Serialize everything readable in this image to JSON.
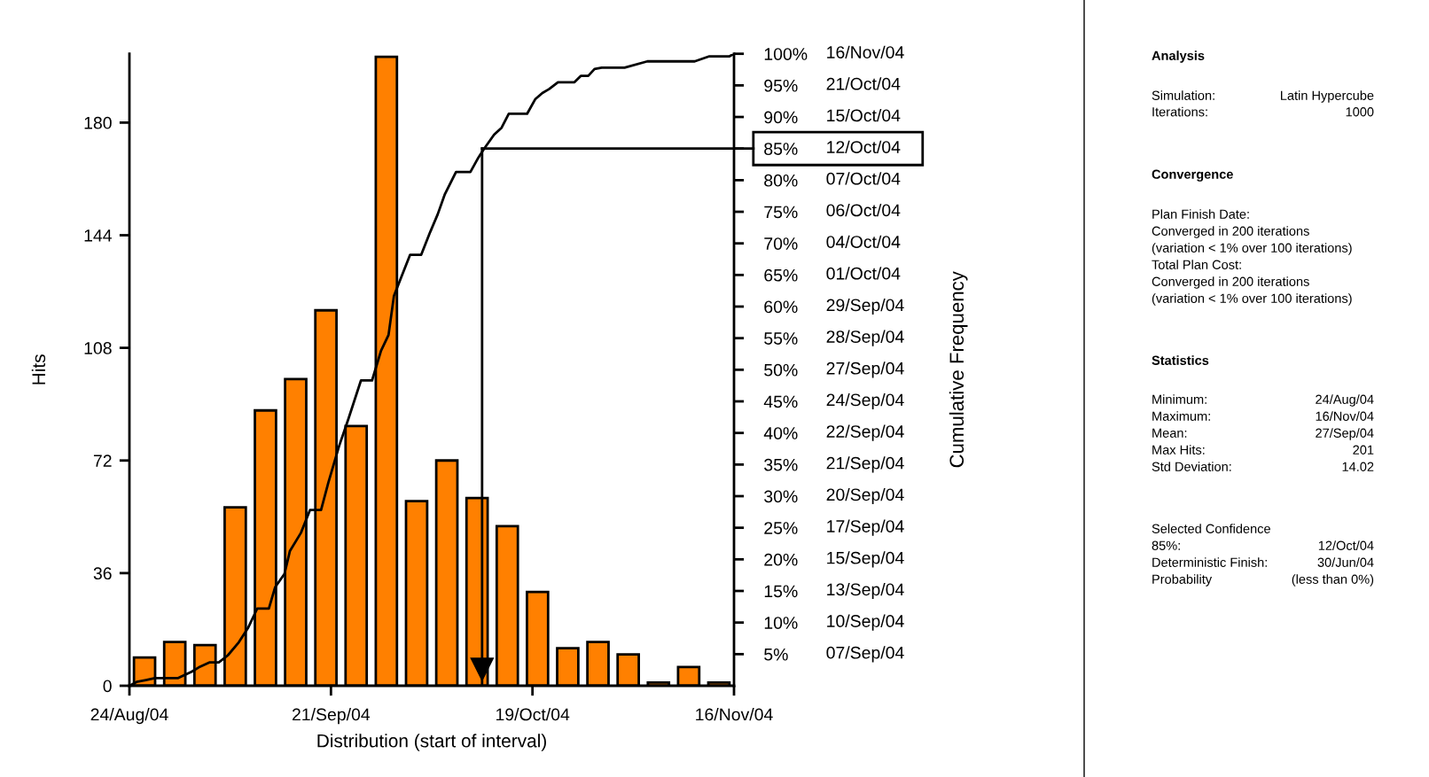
{
  "chart_data": [
    {
      "type": "histogram",
      "xlabel": "Distribution (start of interval)",
      "ylabel": "Hits",
      "y2label": "Cumulative Frequency",
      "bins": [
        "2004-08-24T00:00",
        "2004-08-28T04:48",
        "2004-09-01T09:36",
        "2004-09-05T14:24",
        "2004-09-09T19:12",
        "2004-09-14T00:00",
        "2004-09-18T04:48",
        "2004-09-22T09:36",
        "2004-09-26T14:24",
        "2004-09-30T19:12",
        "2004-10-05T00:00",
        "2004-10-09T04:48",
        "2004-10-13T09:36",
        "2004-10-17T14:24",
        "2004-10-21T19:12",
        "2004-10-26T00:00",
        "2004-10-30T04:48",
        "2004-11-03T09:36",
        "2004-11-07T14:24",
        "2004-11-11T19:12",
        "2004-11-16T00:00"
      ],
      "values": [
        9,
        14,
        13,
        57,
        88,
        98,
        120,
        83,
        201,
        59,
        72,
        60,
        51,
        30,
        12,
        14,
        10,
        1,
        6,
        1
      ],
      "color": "#ff8000",
      "series": [
        {
          "type": "line",
          "axis": "y2",
          "color": "#000000",
          "x": [
            "2004-08-24T00:00",
            "2004-08-25T00:00",
            "2004-08-26T07:00",
            "2004-08-27T13:00",
            "2004-08-30T17:00",
            "2004-09-01T15:00",
            "2004-09-02T15:00",
            "2004-09-04T04:00",
            "2004-09-05T10:00",
            "2004-09-06T16:00",
            "2004-09-08T05:00",
            "2004-09-09T11:00",
            "2004-09-10T18:00",
            "2004-09-12T09:00",
            "2004-09-13T06:00",
            "2004-09-14T13:00",
            "2004-09-15T07:00",
            "2004-09-16T20:00",
            "2004-09-18T02:00",
            "2004-09-19T15:00",
            "2004-09-20T15:00",
            "2004-09-22T03:00",
            "2004-09-23T10:00",
            "2004-09-25T04:00",
            "2004-09-26T17:00",
            "2004-09-27T23:00",
            "2004-09-29T00:00",
            "2004-09-29T18:00",
            "2004-09-30T18:00",
            "2004-10-02T00:00",
            "2004-10-03T13:00",
            "2004-10-04T19:00",
            "2004-10-05T20:00",
            "2004-10-06T20:00",
            "2004-10-08T09:00",
            "2004-10-10T09:00",
            "2004-10-11T12:00",
            "2004-10-12T07:00",
            "2004-10-13T16:00",
            "2004-10-14T17:00",
            "2004-10-15T17:00",
            "2004-10-18T06:00",
            "2004-10-19T09:00",
            "2004-10-20T09:00",
            "2004-10-21T07:00",
            "2004-10-22T13:00",
            "2004-10-24T20:00",
            "2004-10-25T17:00",
            "2004-10-26T18:00",
            "2004-10-27T15:00",
            "2004-10-28T15:00",
            "2004-10-31T19:00",
            "2004-11-03T23:00",
            "2004-11-10T13:00",
            "2004-11-12T14:00",
            "2004-11-15T09:00",
            "2004-11-16T00:00"
          ],
          "values": [
            0,
            0.6,
            0.9,
            1.2,
            1.2,
            2.2,
            2.9,
            3.7,
            3.7,
            4.8,
            6.9,
            9.1,
            12.2,
            12.2,
            15.6,
            17.7,
            21.3,
            24.2,
            27.8,
            27.8,
            32.1,
            37.9,
            42.2,
            48.3,
            48.3,
            53.0,
            55.5,
            61.7,
            64.6,
            68.2,
            68.2,
            71.8,
            74.6,
            77.8,
            81.3,
            81.3,
            83.6,
            85.0,
            87.2,
            88.3,
            90.5,
            90.5,
            92.8,
            93.8,
            94.4,
            95.5,
            95.5,
            96.5,
            96.5,
            97.6,
            97.8,
            97.8,
            98.8,
            98.8,
            99.6,
            99.6,
            100
          ]
        }
      ],
      "xlim": [
        "2004-08-24",
        "2004-11-16"
      ],
      "xticks": [
        {
          "value": "2004-08-24",
          "label": "24/Aug/04"
        },
        {
          "value": "2004-09-21",
          "label": "21/Sep/04"
        },
        {
          "value": "2004-10-19",
          "label": "19/Oct/04"
        },
        {
          "value": "2004-11-16",
          "label": "16/Nov/04"
        }
      ],
      "ylim": [
        0,
        202
      ],
      "yticks": [
        0,
        36,
        72,
        108,
        144,
        180
      ],
      "y2lim": [
        0,
        100
      ],
      "y2ticks": [
        {
          "value": 5,
          "label": "5%"
        },
        {
          "value": 10,
          "label": "10%"
        },
        {
          "value": 15,
          "label": "15%"
        },
        {
          "value": 20,
          "label": "20%"
        },
        {
          "value": 25,
          "label": "25%"
        },
        {
          "value": 30,
          "label": "30%"
        },
        {
          "value": 35,
          "label": "35%"
        },
        {
          "value": 40,
          "label": "40%"
        },
        {
          "value": 45,
          "label": "45%"
        },
        {
          "value": 50,
          "label": "50%"
        },
        {
          "value": 55,
          "label": "55%"
        },
        {
          "value": 60,
          "label": "60%"
        },
        {
          "value": 65,
          "label": "65%"
        },
        {
          "value": 70,
          "label": "70%"
        },
        {
          "value": 75,
          "label": "75%"
        },
        {
          "value": 80,
          "label": "80%"
        },
        {
          "value": 85,
          "label": "85%"
        },
        {
          "value": 90,
          "label": "90%"
        },
        {
          "value": 95,
          "label": "95%"
        },
        {
          "value": 100,
          "label": "100%"
        }
      ],
      "annotations": [
        "07/Sep/04",
        "10/Sep/04",
        "13/Sep/04",
        "15/Sep/04",
        "17/Sep/04",
        "20/Sep/04",
        "21/Sep/04",
        "22/Sep/04",
        "24/Sep/04",
        "27/Sep/04",
        "28/Sep/04",
        "29/Sep/04",
        "01/Oct/04",
        "04/Oct/04",
        "06/Oct/04",
        "07/Oct/04",
        "12/Oct/04",
        "15/Oct/04",
        "21/Oct/04",
        "16/Nov/04"
      ],
      "ref_lines": [
        {
          "axis": "x",
          "value": "2004-10-12"
        },
        {
          "axis": "y2",
          "value": 85
        }
      ]
    },
    {
      "type": "other",
      "annotations": [
        "Analysis",
        "Simulation:",
        "Latin Hypercube",
        "Iterations:",
        "1000",
        "Convergence",
        "Plan Finish Date:",
        "Converged in 200 iterations",
        "(variation < 1% over 100 iterations)",
        "Total Plan Cost:",
        "Converged in 200 iterations",
        "(variation < 1% over 100 iterations)",
        "Statistics",
        "Minimum:",
        "24/Aug/04",
        "Maximum:",
        "16/Nov/04",
        "Mean:",
        "27/Sep/04",
        "Max Hits:",
        "201",
        "Std Deviation:",
        "14.02",
        "Selected Confidence",
        "85%:",
        "12/Oct/04",
        "Deterministic Finish:",
        "30/Jun/04",
        "Probability",
        "(less than 0%)"
      ]
    }
  ]
}
